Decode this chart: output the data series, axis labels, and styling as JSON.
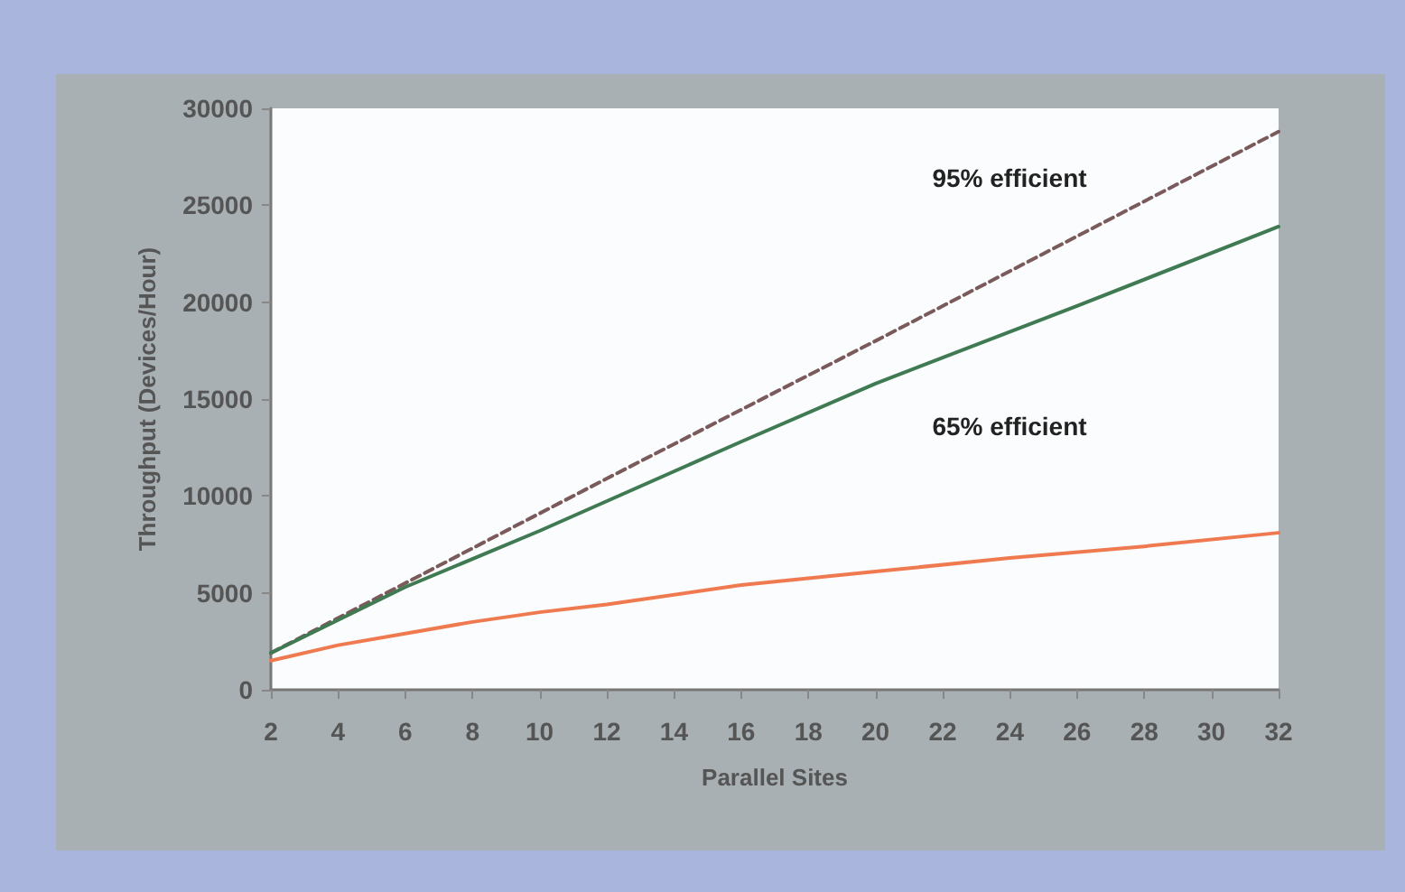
{
  "chart_data": {
    "type": "line",
    "xlabel": "Parallel Sites",
    "ylabel": "Throughput (Devices/Hour)",
    "series": [
      {
        "name": "95% efficient",
        "color": "#7a5a5a",
        "line_style": "dashed",
        "x": [
          2,
          12,
          20,
          32
        ],
        "values": [
          1900,
          10900,
          18000,
          28800
        ]
      },
      {
        "name": "65% efficient",
        "color": "#3f7a52",
        "line_style": "solid",
        "x": [
          2,
          6,
          10,
          16,
          20,
          26,
          32
        ],
        "values": [
          1900,
          5300,
          8200,
          12800,
          15800,
          19800,
          23900
        ]
      },
      {
        "color": "#f07a50",
        "line_style": "solid",
        "x": [
          2,
          4,
          6,
          8,
          10,
          12,
          16,
          20,
          24,
          28,
          32
        ],
        "values": [
          1500,
          2300,
          2900,
          3500,
          4000,
          4400,
          5400,
          6100,
          6800,
          7400,
          8100
        ]
      }
    ],
    "xlim": [
      2,
      32
    ],
    "xticks": [
      2,
      4,
      6,
      8,
      10,
      12,
      14,
      16,
      18,
      20,
      22,
      24,
      26,
      28,
      30,
      32
    ],
    "ylim": [
      0,
      30000
    ],
    "yticks": [
      0,
      5000,
      10000,
      15000,
      20000,
      25000,
      30000
    ],
    "grid": false,
    "marker": "none"
  }
}
